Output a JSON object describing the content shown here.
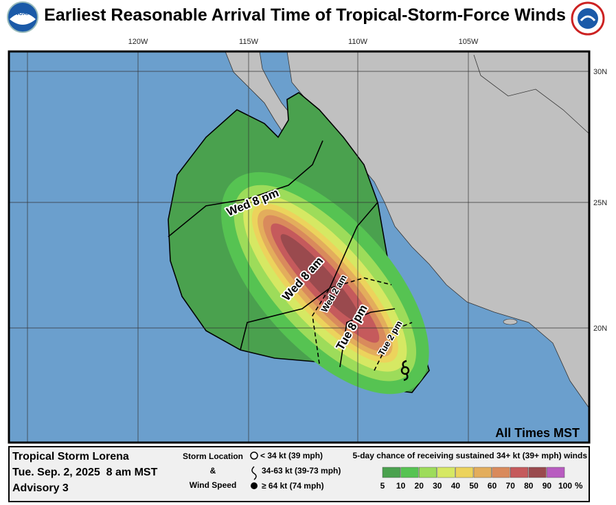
{
  "header": {
    "title": "Earliest Reasonable Arrival Time of Tropical-Storm-Force Winds"
  },
  "map": {
    "longitude_labels": [
      "120W",
      "115W",
      "110W",
      "105W"
    ],
    "latitude_labels": [
      "30N",
      "25N",
      "20N"
    ],
    "arrival_times": [
      "Wed 8 pm",
      "Wed 8 am",
      "Wed 2 am",
      "Tue 8 pm",
      "Tue 2 pm"
    ],
    "time_zone_note": "All Times MST"
  },
  "legend": {
    "storm": {
      "name": "Tropical Storm Lorena",
      "time": "Tue. Sep. 2, 2025  8 am MST",
      "advisory": "Advisory 3"
    },
    "storm_key": {
      "title_top": "Storm Location",
      "title_mid": "&",
      "title_bottom": "Wind Speed",
      "items": [
        "< 34 kt (39 mph)",
        "34-63 kt (39-73 mph)",
        "≥ 64 kt (74 mph)"
      ]
    },
    "probability": {
      "title": "5-day chance of receiving sustained 34+ kt (39+ mph) winds",
      "labels": [
        "5",
        "10",
        "20",
        "30",
        "40",
        "50",
        "60",
        "70",
        "80",
        "90",
        "100"
      ],
      "unit": "%"
    }
  }
}
